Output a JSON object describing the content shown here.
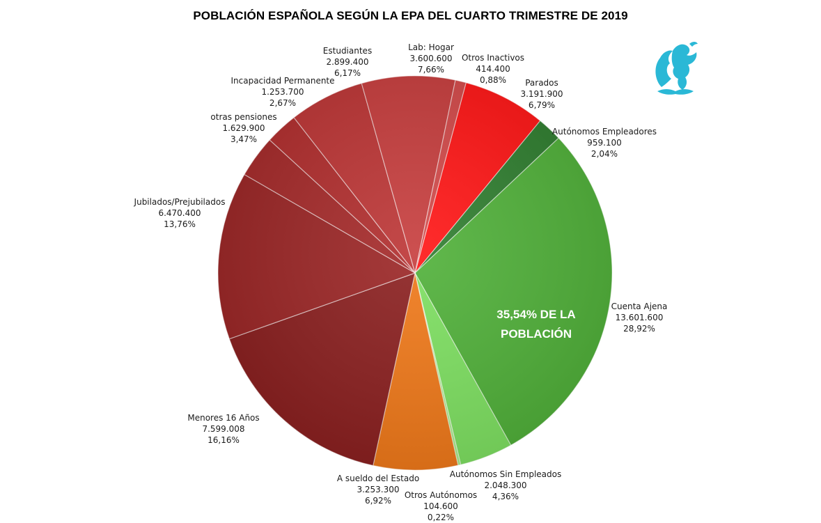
{
  "title": "POBLACIÓN ESPAÑOLA SEGÚN LA EPA DEL CUARTO TRIMESTRE DE 2019",
  "annotation": {
    "line1": "35,54% DE LA",
    "line2": "POBLACIÓN"
  },
  "logo_icon": "griffin-emblem-icon",
  "colors": {
    "annotation_text": "#ffffff",
    "logo": "#2ab8d6"
  },
  "chart_data": {
    "type": "pie",
    "title": "POBLACIÓN ESPAÑOLA SEGÚN LA EPA DEL CUARTO TRIMESTRE DE 2019",
    "slices": [
      {
        "label": "Parados",
        "value_text": "3.191.900",
        "percent_text": "6,79%",
        "value": 3191900,
        "percent": 6.79,
        "color": "#ff1414"
      },
      {
        "label": "Autónomos Empleadores",
        "value_text": "959.100",
        "percent_text": "2,04%",
        "value": 959100,
        "percent": 2.04,
        "color": "#2e7d2e"
      },
      {
        "label": "Cuenta Ajena",
        "value_text": "13.601.600",
        "percent_text": "28,92%",
        "value": 13601600,
        "percent": 28.92,
        "color": "#4fb038"
      },
      {
        "label": "Autónomos Sin Empleados",
        "value_text": "2.048.300",
        "percent_text": "4,36%",
        "value": 2048300,
        "percent": 4.36,
        "color": "#7de060"
      },
      {
        "label": "Otros Autónomos",
        "value_text": "104.600",
        "percent_text": "0,22%",
        "value": 104600,
        "percent": 0.22,
        "color": "#a8ec8a"
      },
      {
        "label": "A sueldo del Estado",
        "value_text": "3.253.300",
        "percent_text": "6,92%",
        "value": 3253300,
        "percent": 6.92,
        "color": "#f07818"
      },
      {
        "label": "Menores 16 Años",
        "value_text": "7.599.008",
        "percent_text": "16,16%",
        "value": 7599008,
        "percent": 16.16,
        "color": "#8a1e1e"
      },
      {
        "label": "Jubilados/Prejubilados",
        "value_text": "6.470.400",
        "percent_text": "13,76%",
        "value": 6470400,
        "percent": 13.76,
        "color": "#9a2424"
      },
      {
        "label": "otras pensiones",
        "value_text": "1.629.900",
        "percent_text": "3,47%",
        "value": 1629900,
        "percent": 3.47,
        "color": "#a42828"
      },
      {
        "label": "Incapacidad Permanente",
        "value_text": "1.253.700",
        "percent_text": "2,67%",
        "value": 1253700,
        "percent": 2.67,
        "color": "#b02c2c"
      },
      {
        "label": "Estudiantes",
        "value_text": "2.899.400",
        "percent_text": "6,17%",
        "value": 2899400,
        "percent": 6.17,
        "color": "#bc3434"
      },
      {
        "label": "Lab: Hogar",
        "value_text": "3.600.600",
        "percent_text": "7,66%",
        "value": 3600600,
        "percent": 7.66,
        "color": "#c63c3c"
      },
      {
        "label": "Otros Inactivos",
        "value_text": "414.400",
        "percent_text": "0,88%",
        "value": 414400,
        "percent": 0.88,
        "color": "#d24848"
      }
    ]
  }
}
